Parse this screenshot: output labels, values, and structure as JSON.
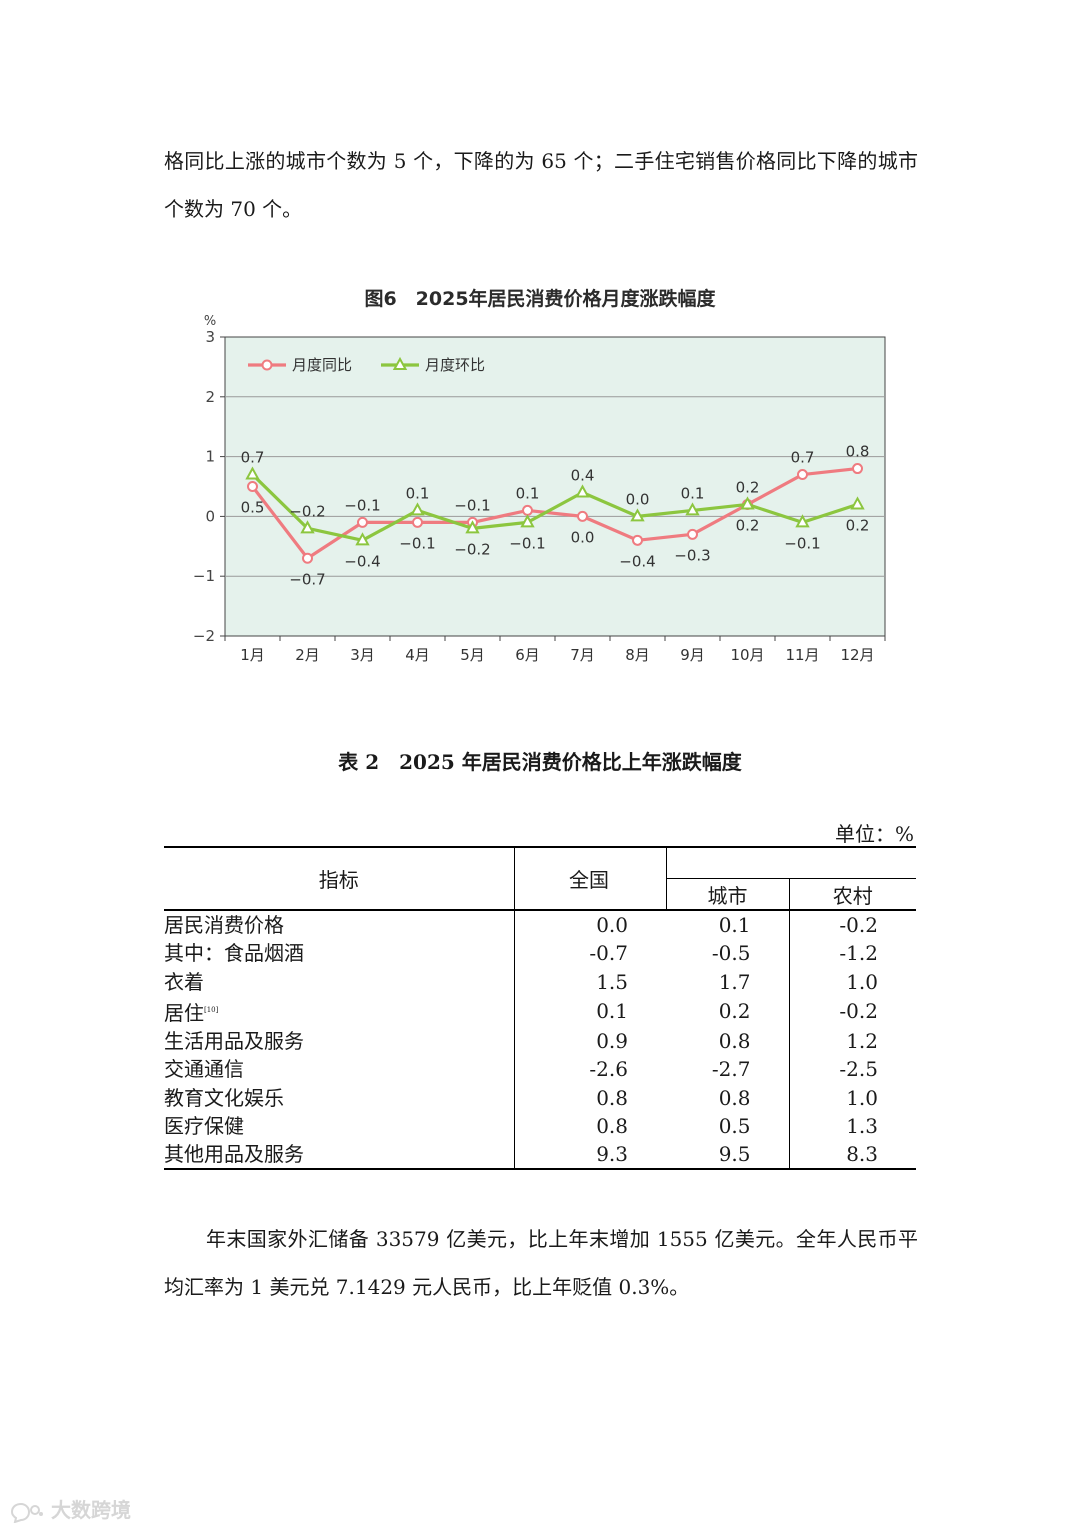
{
  "paragraphs": {
    "p1": "格同比上涨的城市个数为 5 个，下降的为 65 个；二手住宅销售价格同比下降的城市个数为 70 个。",
    "p2": "年末国家外汇储备 33579 亿美元，比上年末增加 1555 亿美元。全年人民币平均汇率为 1 美元兑 7.1429 元人民币，比上年贬值 0.3%。"
  },
  "figure": {
    "title": "图6　2025年居民消费价格月度涨跌幅度"
  },
  "chart_data": {
    "type": "line",
    "title": "图6　2025年居民消费价格月度涨跌幅度",
    "ylabel": "%",
    "xlabel": "",
    "ylim": [
      -2,
      3
    ],
    "yticks": [
      3,
      2,
      1,
      0,
      -1,
      -2
    ],
    "ytick_labels": [
      "3",
      "2",
      "1",
      "0",
      "−1",
      "−2"
    ],
    "grid": "horizontal",
    "legend_position": "top-left",
    "categories": [
      "1月",
      "2月",
      "3月",
      "4月",
      "5月",
      "6月",
      "7月",
      "8月",
      "9月",
      "10月",
      "11月",
      "12月"
    ],
    "series": [
      {
        "name": "月度同比",
        "color": "#ef7b80",
        "marker": "circle",
        "values": [
          0.5,
          -0.7,
          -0.1,
          -0.1,
          -0.1,
          0.1,
          0.0,
          -0.4,
          -0.3,
          0.2,
          0.7,
          0.8
        ],
        "labels": [
          "0.5",
          "−0.7",
          "−0.1",
          "−0.1",
          "−0.1",
          "0.1",
          "0.0",
          "−0.4",
          "−0.3",
          "0.2",
          "0.7",
          "0.8"
        ]
      },
      {
        "name": "月度环比",
        "color": "#8cc63f",
        "marker": "triangle",
        "values": [
          0.7,
          -0.2,
          -0.4,
          0.1,
          -0.2,
          -0.1,
          0.4,
          0.0,
          0.1,
          0.2,
          -0.1,
          0.2
        ],
        "labels": [
          "0.7",
          "−0.2",
          "−0.4",
          "0.1",
          "−0.2",
          "−0.1",
          "0.4",
          "0.0",
          "0.1",
          "0.2",
          "−0.1",
          "0.2"
        ]
      }
    ],
    "plot_background": "#e5f2ec",
    "grid_color": "#9a9a9a"
  },
  "table": {
    "title": "表 2　2025 年居民消费价格比上年涨跌幅度",
    "unit": "单位：%",
    "headers": {
      "indicator": "指标",
      "national": "全国",
      "city": "城市",
      "rural": "农村"
    },
    "rows": [
      {
        "name": "居民消费价格",
        "note": "",
        "level": 0,
        "national": "0.0",
        "city": "0.1",
        "rural": "-0.2"
      },
      {
        "name": "其中：食品烟酒",
        "note": "",
        "level": 1,
        "national": "-0.7",
        "city": "-0.5",
        "rural": "-1.2"
      },
      {
        "name": "衣着",
        "note": "",
        "level": 2,
        "national": "1.5",
        "city": "1.7",
        "rural": "1.0"
      },
      {
        "name": "居住",
        "note": "[10]",
        "level": 2,
        "national": "0.1",
        "city": "0.2",
        "rural": "-0.2"
      },
      {
        "name": "生活用品及服务",
        "note": "",
        "level": 2,
        "national": "0.9",
        "city": "0.8",
        "rural": "1.2"
      },
      {
        "name": "交通通信",
        "note": "",
        "level": 2,
        "national": "-2.6",
        "city": "-2.7",
        "rural": "-2.5"
      },
      {
        "name": "教育文化娱乐",
        "note": "",
        "level": 2,
        "national": "0.8",
        "city": "0.8",
        "rural": "1.0"
      },
      {
        "name": "医疗保健",
        "note": "",
        "level": 2,
        "national": "0.8",
        "city": "0.5",
        "rural": "1.3"
      },
      {
        "name": "其他用品及服务",
        "note": "",
        "level": 2,
        "national": "9.3",
        "city": "9.5",
        "rural": "8.3"
      }
    ]
  },
  "watermark": {
    "text": "大数跨境",
    "logo_icon": "speech-bubble-logo-icon"
  }
}
